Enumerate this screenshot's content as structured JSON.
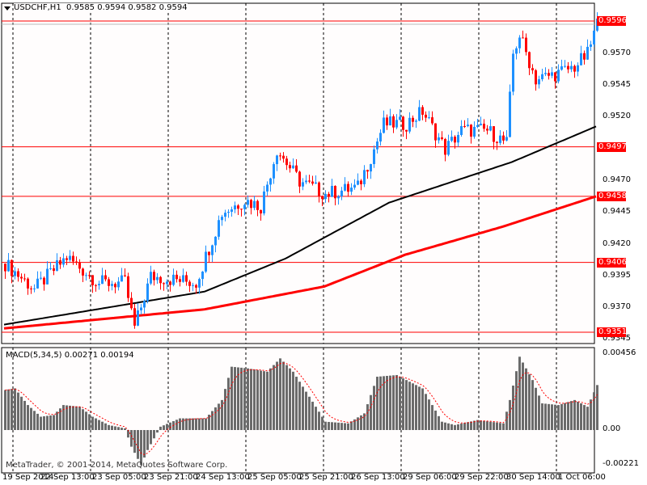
{
  "header": {
    "symbol": "USDCHF,H1",
    "open": "0.9585",
    "high": "0.9594",
    "low": "0.9582",
    "close": "0.9594"
  },
  "price_axis": {
    "labels": [
      "0.9570",
      "0.9545",
      "0.9520",
      "0.9470",
      "0.9445",
      "0.9420",
      "0.9395",
      "0.9370",
      "0.9345"
    ],
    "range": [
      0.9596,
      0.9351
    ]
  },
  "levels": [
    "0.9596",
    "0.9497",
    "0.9458",
    "0.9406",
    "0.9351"
  ],
  "macd": {
    "title": "MACD(5,34,5) 0.00271 0.00194",
    "axis_labels": [
      "0.00456",
      "0.00",
      "-0.00221"
    ],
    "anchors": [
      [
        0,
        0.0024
      ],
      [
        3,
        0.0025
      ],
      [
        7,
        0.0015
      ],
      [
        11,
        0.0008
      ],
      [
        15,
        0.0009
      ],
      [
        18,
        0.0015
      ],
      [
        23,
        0.0014
      ],
      [
        27,
        0.0008
      ],
      [
        32,
        0.0003
      ],
      [
        37,
        0.0001
      ],
      [
        39,
        -0.001
      ],
      [
        42,
        -0.0021
      ],
      [
        44,
        -0.0012
      ],
      [
        48,
        0.0002
      ],
      [
        54,
        0.0007
      ],
      [
        62,
        0.0007
      ],
      [
        67,
        0.0018
      ],
      [
        70,
        0.0038
      ],
      [
        75,
        0.0037
      ],
      [
        81,
        0.0035
      ],
      [
        85,
        0.0043
      ],
      [
        89,
        0.0035
      ],
      [
        94,
        0.002
      ],
      [
        99,
        0.0005
      ],
      [
        106,
        0.0004
      ],
      [
        111,
        0.001
      ],
      [
        115,
        0.0032
      ],
      [
        121,
        0.0033
      ],
      [
        129,
        0.0025
      ],
      [
        135,
        0.0005
      ],
      [
        139,
        0.0003
      ],
      [
        146,
        0.0006
      ],
      [
        154,
        0.0004
      ],
      [
        156,
        0.0018
      ],
      [
        159,
        0.0044
      ],
      [
        163,
        0.003
      ],
      [
        166,
        0.0016
      ],
      [
        171,
        0.0015
      ],
      [
        176,
        0.0018
      ],
      [
        180,
        0.0014
      ],
      [
        183,
        0.0027
      ]
    ]
  },
  "price_anchors": [
    [
      0,
      0.9405
    ],
    [
      9,
      0.9385
    ],
    [
      19,
      0.941
    ],
    [
      29,
      0.939
    ],
    [
      37,
      0.939
    ],
    [
      40,
      0.9355
    ],
    [
      45,
      0.9395
    ],
    [
      59,
      0.939
    ],
    [
      67,
      0.9445
    ],
    [
      74,
      0.9455
    ],
    [
      79,
      0.945
    ],
    [
      84,
      0.9495
    ],
    [
      91,
      0.947
    ],
    [
      99,
      0.946
    ],
    [
      109,
      0.9465
    ],
    [
      114,
      0.9495
    ],
    [
      117,
      0.9515
    ],
    [
      124,
      0.9515
    ],
    [
      129,
      0.9525
    ],
    [
      136,
      0.9495
    ],
    [
      141,
      0.951
    ],
    [
      149,
      0.951
    ],
    [
      155,
      0.95
    ],
    [
      157,
      0.957
    ],
    [
      159,
      0.9585
    ],
    [
      164,
      0.955
    ],
    [
      171,
      0.9555
    ],
    [
      176,
      0.956
    ],
    [
      180,
      0.957
    ],
    [
      183,
      0.9594
    ]
  ],
  "ma_black": [
    [
      0,
      0.9357
    ],
    [
      62,
      0.9383
    ],
    [
      87,
      0.9409
    ],
    [
      119,
      0.9453
    ],
    [
      157,
      0.9485
    ],
    [
      183,
      0.9513
    ]
  ],
  "ma_red": [
    [
      0,
      0.9354
    ],
    [
      62,
      0.9369
    ],
    [
      99,
      0.9387
    ],
    [
      124,
      0.9412
    ],
    [
      154,
      0.9434
    ],
    [
      183,
      0.9458
    ]
  ],
  "time_labels": [
    "19 Sep 2014",
    "22 Sep 13:00",
    "23 Sep 05:00",
    "23 Sep 21:00",
    "24 Sep 13:00",
    "25 Sep 05:00",
    "25 Sep 21:00",
    "26 Sep 13:00",
    "29 Sep 06:00",
    "29 Sep 22:00",
    "30 Sep 14:00",
    "1 Oct 06:00"
  ],
  "copyright": "MetaTrader, © 2001-2014, MetaQuotes Software Corp.",
  "colors": {
    "up": "#1e90ff",
    "down": "#ff0000",
    "hist": "#6b6b6b",
    "level": "#ff0000"
  }
}
